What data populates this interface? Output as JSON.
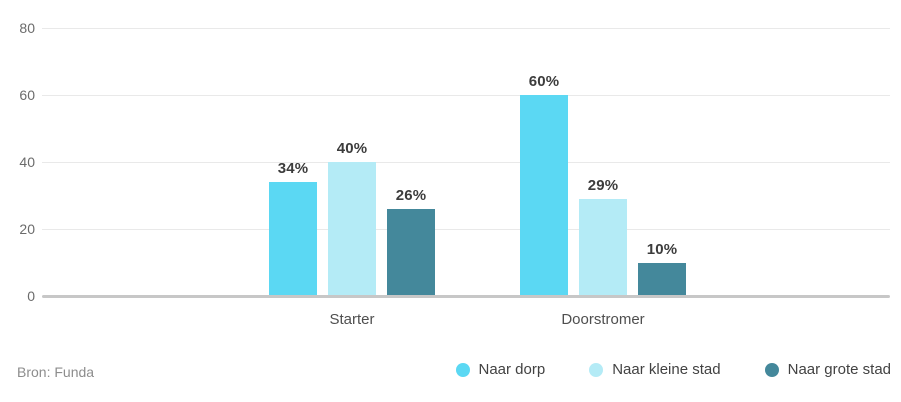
{
  "chart_data": {
    "type": "bar",
    "categories": [
      "Starter",
      "Doorstromer"
    ],
    "series": [
      {
        "name": "Naar dorp",
        "color": "#5BD8F3",
        "values": [
          34,
          60
        ],
        "labels": [
          "34%",
          "60%"
        ]
      },
      {
        "name": "Naar kleine stad",
        "color": "#B4EBF6",
        "values": [
          40,
          29
        ],
        "labels": [
          "40%",
          "29%"
        ]
      },
      {
        "name": "Naar grote stad",
        "color": "#44889B",
        "values": [
          26,
          10
        ],
        "labels": [
          "26%",
          "10%"
        ]
      }
    ],
    "yticks": [
      0,
      20,
      40,
      60,
      80
    ],
    "ylim": [
      0,
      80
    ],
    "grid": true,
    "legend_position": "bottom-right",
    "title": "",
    "xlabel": "",
    "ylabel": ""
  },
  "footer": {
    "source": "Bron: Funda"
  },
  "colors": {
    "background": "#ffffff",
    "grid_line": "#e9e9e9",
    "axis_line": "#c7c7c7",
    "tick_label": "#6b6b6b",
    "value_label": "#3c3c3c",
    "category_label": "#4f4f4f",
    "source_text": "#8d8d8d",
    "legend_label": "#424242"
  }
}
